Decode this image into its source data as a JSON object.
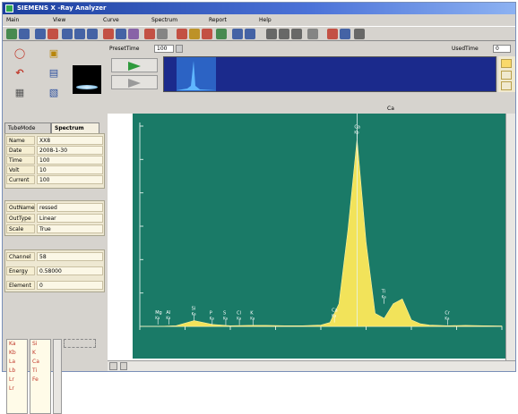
{
  "window": {
    "title": "SIEMENS X -Ray Analyzer"
  },
  "menu": [
    "Main",
    "View",
    "Curve",
    "Spectrum",
    "Report",
    "Help"
  ],
  "toolbar": {
    "icons": [
      "settings-icon",
      "display-icon",
      "tool-icon",
      "chart-icon",
      "table-icon",
      "table-icon",
      "table-icon",
      "tool-icon",
      "chart-icon",
      "image-icon",
      "alert-icon",
      "page-icon",
      "refresh-icon",
      "settings-icon",
      "cube-icon",
      "book-icon",
      "list-icon",
      "list-icon",
      "print-icon",
      "print-icon",
      "print-icon",
      "document-icon",
      "gear-icon",
      "settings-icon",
      "help-icon"
    ]
  },
  "left_buttons": {
    "icons": [
      "target-icon",
      "cube-icon",
      "arrow-icon",
      "chart-icon",
      "document-icon",
      "chart-icon"
    ]
  },
  "tabs": [
    "TubeMode",
    "Spectrum"
  ],
  "info": [
    {
      "k": "Name",
      "v": "XX8"
    },
    {
      "k": "Date",
      "v": "2008-1-30"
    },
    {
      "k": "Time",
      "v": "100"
    },
    {
      "k": "Volt",
      "v": "10"
    },
    {
      "k": "Current",
      "v": "100"
    }
  ],
  "display": [
    {
      "k": "OutName",
      "v": "ressed"
    },
    {
      "k": "OutType",
      "v": "Linear"
    },
    {
      "k": "Scale",
      "v": "True"
    }
  ],
  "cursor": [
    {
      "k": "Channel",
      "v": "58"
    },
    {
      "k": "Energy",
      "v": "0.58000"
    },
    {
      "k": "Element",
      "v": "0"
    }
  ],
  "elements": {
    "col1": [
      "Ka",
      "Kb",
      "La",
      "Lb",
      "Lr",
      "Lr"
    ],
    "col2": [
      "Si",
      "K",
      "Ca",
      "Ti",
      "Fe",
      ""
    ]
  },
  "preview": {
    "preset_label": "PresetTime",
    "preset_value": "100",
    "used_label": "UsedTime",
    "used_value": "0"
  },
  "chart_header": {
    "label": "Ca"
  },
  "chart_data": {
    "type": "line",
    "x": [
      0,
      20,
      40,
      60,
      80,
      100,
      120,
      140,
      160,
      180,
      200,
      210,
      220,
      230,
      240,
      250,
      260,
      270,
      280,
      290,
      300,
      310,
      320,
      340,
      360,
      380,
      400
    ],
    "values": [
      0,
      0,
      2,
      18,
      6,
      2,
      3,
      3,
      2,
      2,
      4,
      12,
      70,
      300,
      580,
      260,
      40,
      25,
      70,
      85,
      20,
      8,
      4,
      2,
      3,
      2,
      1
    ],
    "peaks": [
      {
        "label": "Mg",
        "sub": "Ka"
      },
      {
        "label": "Al",
        "sub": "Ka"
      },
      {
        "label": "Si",
        "sub": "Ka"
      },
      {
        "label": "P",
        "sub": "Ka"
      },
      {
        "label": "S",
        "sub": "Ka"
      },
      {
        "label": "Cl",
        "sub": "Ka"
      },
      {
        "label": "K",
        "sub": "Ka"
      },
      {
        "label": "Ca",
        "sub": "Ka"
      },
      {
        "label": "Ca",
        "sub": "Kb"
      },
      {
        "label": "Ti",
        "sub": "Ka"
      },
      {
        "label": "Cr",
        "sub": "Ka"
      }
    ],
    "xlim": [
      0,
      400
    ],
    "ylim": [
      0,
      620
    ],
    "series_color": "#f2e35a",
    "background": "#1a7a67"
  },
  "colors": {
    "accent": "#1c3f9e",
    "spectrum": "#f2e35a",
    "chart_bg": "#1a7a67"
  }
}
